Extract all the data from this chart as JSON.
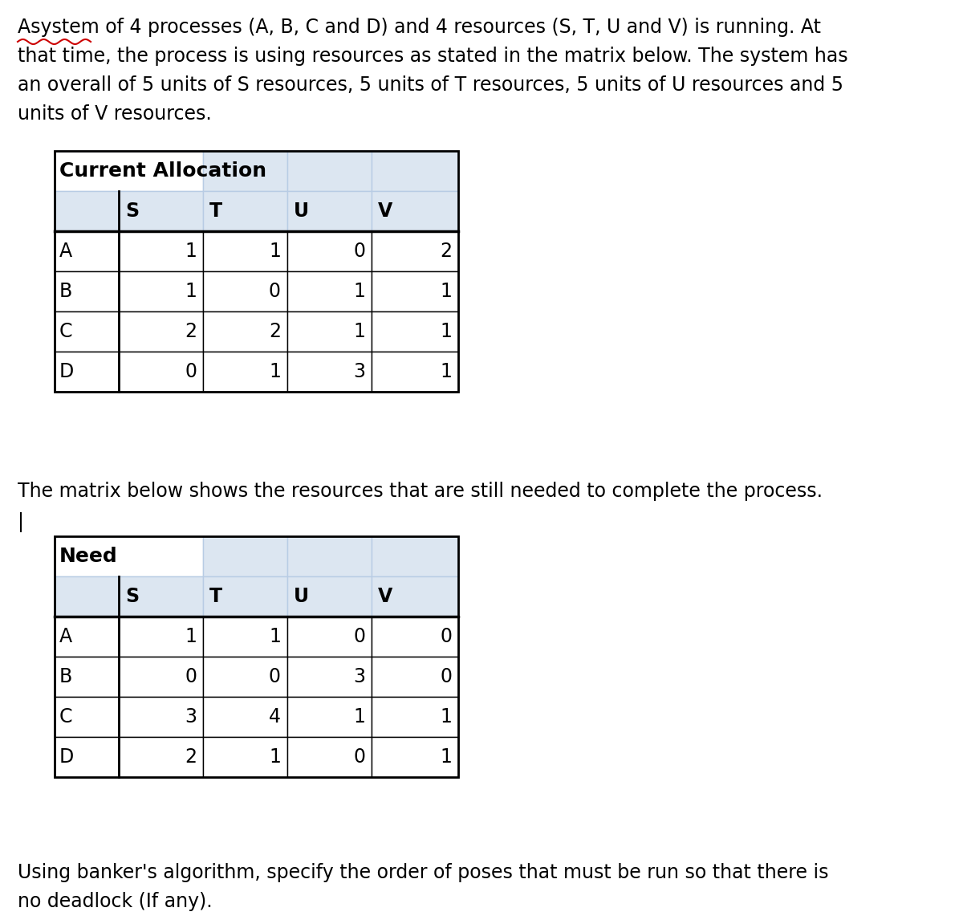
{
  "title_lines": [
    "Asystem of 4 processes (A, B, C and D) and 4 resources (S, T, U and V) is running. At",
    "that time, the process is using resources as stated in the matrix below. The system has",
    "an overall of 5 units of S resources, 5 units of T resources, 5 units of U resources and 5",
    "units of V resources."
  ],
  "alloc_title": "Current Allocation",
  "alloc_cols": [
    "",
    "S",
    "T",
    "U",
    "V"
  ],
  "alloc_rows": [
    [
      "A",
      "1",
      "1",
      "0",
      "2"
    ],
    [
      "B",
      "1",
      "0",
      "1",
      "1"
    ],
    [
      "C",
      "2",
      "2",
      "1",
      "1"
    ],
    [
      "D",
      "0",
      "1",
      "3",
      "1"
    ]
  ],
  "mid_line1": "The matrix below shows the resources that are still needed to complete the process.",
  "mid_line2": "|",
  "need_title": "Need",
  "need_cols": [
    "",
    "S",
    "T",
    "U",
    "V"
  ],
  "need_rows": [
    [
      "A",
      "1",
      "1",
      "0",
      "0"
    ],
    [
      "B",
      "0",
      "0",
      "3",
      "0"
    ],
    [
      "C",
      "3",
      "4",
      "1",
      "1"
    ],
    [
      "D",
      "2",
      "1",
      "0",
      "1"
    ]
  ],
  "footer_lines": [
    "Using banker's algorithm, specify the order of poses that must be run so that there is",
    "no deadlock (If any)."
  ],
  "bg_color": "#ffffff",
  "text_color": "#000000",
  "table_header_bg": "#dce6f1",
  "table_cell_bg": "#ffffff",
  "table_border_light": "#b8cce4",
  "table_border_dark": "#000000",
  "font_size_body": 17,
  "font_size_table_data": 17,
  "font_size_table_header": 18,
  "squiggle_color": "#cc0000"
}
